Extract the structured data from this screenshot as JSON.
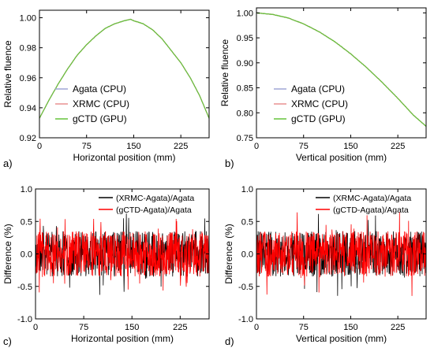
{
  "chart_data": [
    {
      "id": "a",
      "panel_label": "a)",
      "type": "line",
      "xlabel": "Horizontal position (mm)",
      "ylabel": "Relative fluence",
      "xlim": [
        0,
        270
      ],
      "ylim": [
        0.92,
        1.005
      ],
      "xticks": [
        0,
        75,
        150,
        225
      ],
      "yticks": [
        0.92,
        0.94,
        0.96,
        0.98,
        1.0
      ],
      "ytick_labels": [
        "0.92",
        "0.94",
        "0.96",
        "0.98",
        "1.00"
      ],
      "legend_position": "bottom-left",
      "x": [
        0,
        15,
        30,
        45,
        60,
        75,
        90,
        105,
        120,
        135,
        145,
        150,
        165,
        180,
        195,
        210,
        225,
        240,
        255,
        270
      ],
      "series": [
        {
          "name": "Agata (CPU)",
          "color": "#9fa6d6",
          "values": [
            0.933,
            0.945,
            0.956,
            0.966,
            0.975,
            0.982,
            0.988,
            0.993,
            0.996,
            0.998,
            0.999,
            0.998,
            0.996,
            0.992,
            0.986,
            0.978,
            0.97,
            0.96,
            0.948,
            0.933
          ]
        },
        {
          "name": "XRMC (CPU)",
          "color": "#e89090",
          "values": [
            0.933,
            0.945,
            0.956,
            0.966,
            0.975,
            0.982,
            0.988,
            0.993,
            0.996,
            0.998,
            0.999,
            0.998,
            0.996,
            0.992,
            0.986,
            0.978,
            0.97,
            0.96,
            0.948,
            0.933
          ]
        },
        {
          "name": "gCTD (GPU)",
          "color": "#66c23a",
          "values": [
            0.933,
            0.945,
            0.956,
            0.966,
            0.975,
            0.982,
            0.988,
            0.993,
            0.996,
            0.998,
            0.999,
            0.998,
            0.996,
            0.992,
            0.986,
            0.978,
            0.97,
            0.96,
            0.948,
            0.933
          ]
        }
      ]
    },
    {
      "id": "b",
      "panel_label": "b)",
      "type": "line",
      "xlabel": "Vertical position (mm)",
      "ylabel": "Relative fluence",
      "xlim": [
        0,
        270
      ],
      "ylim": [
        0.75,
        1.01
      ],
      "xticks": [
        0,
        75,
        150,
        225
      ],
      "yticks": [
        0.75,
        0.8,
        0.85,
        0.9,
        0.95,
        1.0
      ],
      "ytick_labels": [
        "0.75",
        "0.80",
        "0.85",
        "0.90",
        "0.95",
        "1.00"
      ],
      "legend_position": "bottom-left",
      "x": [
        0,
        25,
        50,
        75,
        100,
        125,
        150,
        175,
        200,
        225,
        250,
        270
      ],
      "series": [
        {
          "name": "Agata (CPU)",
          "color": "#9fa6d6",
          "values": [
            1.0,
            0.997,
            0.99,
            0.978,
            0.962,
            0.942,
            0.918,
            0.891,
            0.861,
            0.829,
            0.795,
            0.773
          ]
        },
        {
          "name": "XRMC (CPU)",
          "color": "#e89090",
          "values": [
            1.0,
            0.997,
            0.99,
            0.978,
            0.962,
            0.942,
            0.918,
            0.891,
            0.861,
            0.829,
            0.795,
            0.773
          ]
        },
        {
          "name": "gCTD (GPU)",
          "color": "#66c23a",
          "values": [
            1.0,
            0.997,
            0.99,
            0.978,
            0.962,
            0.942,
            0.918,
            0.891,
            0.861,
            0.829,
            0.795,
            0.773
          ]
        }
      ]
    },
    {
      "id": "c",
      "panel_label": "c)",
      "type": "line",
      "xlabel": "Horizontal position (mm)",
      "ylabel": "Difference (%)",
      "xlim": [
        0,
        270
      ],
      "ylim": [
        -1.0,
        1.0
      ],
      "xticks": [
        0,
        75,
        150,
        225
      ],
      "yticks": [
        -1.0,
        -0.5,
        0.0,
        0.5,
        1.0
      ],
      "ytick_labels": [
        "-1.0",
        "-0.5",
        "0.0",
        "0.5",
        "1.0"
      ],
      "legend_position": "top-right",
      "noise_amplitude": 0.35,
      "peak_range": [
        -0.65,
        0.65
      ],
      "series": [
        {
          "name": "(XRMC-Agata)/Agata",
          "color": "#000000"
        },
        {
          "name": "(gCTD-Agata)/Agata",
          "color": "#ff0000"
        }
      ]
    },
    {
      "id": "d",
      "panel_label": "d)",
      "type": "line",
      "xlabel": "Vertical position (mm)",
      "ylabel": "Difference (%)",
      "xlim": [
        0,
        270
      ],
      "ylim": [
        -1.0,
        1.0
      ],
      "xticks": [
        0,
        75,
        150,
        225
      ],
      "yticks": [
        -1.0,
        -0.5,
        0.0,
        0.5,
        1.0
      ],
      "ytick_labels": [
        "-1.0",
        "-0.5",
        "0.0",
        "0.5",
        "1.0"
      ],
      "legend_position": "top-right",
      "noise_amplitude": 0.35,
      "peak_range": [
        -0.65,
        0.65
      ],
      "series": [
        {
          "name": "(XRMC-Agata)/Agata",
          "color": "#000000"
        },
        {
          "name": "(gCTD-Agata)/Agata",
          "color": "#ff0000"
        }
      ]
    }
  ]
}
